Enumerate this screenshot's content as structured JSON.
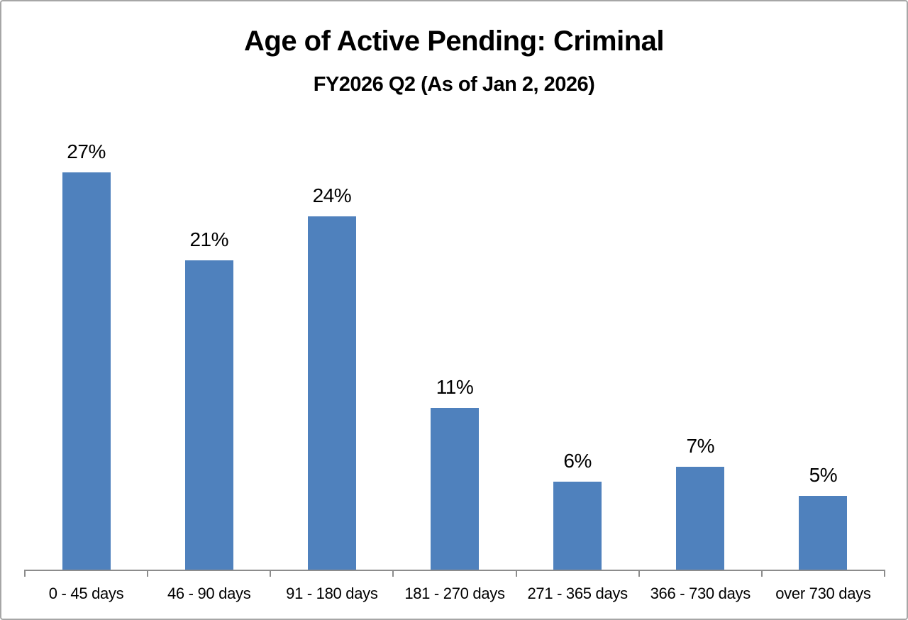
{
  "chart": {
    "title": "Age of Active Pending: Criminal",
    "subtitle": "FY2026 Q2 (As of Jan 2, 2026)"
  },
  "chart_data": {
    "type": "bar",
    "title": "Age of Active Pending: Criminal",
    "subtitle": "FY2026 Q2 (As of Jan 2, 2026)",
    "categories": [
      "0 - 45 days",
      "46 - 90 days",
      "91 - 180 days",
      "181 - 270 days",
      "271 - 365 days",
      "366 - 730 days",
      "over 730 days"
    ],
    "values": [
      27,
      21,
      24,
      11,
      6,
      7,
      5
    ],
    "data_labels": [
      "27%",
      "21%",
      "24%",
      "11%",
      "6%",
      "7%",
      "5%"
    ],
    "xlabel": "",
    "ylabel": "",
    "grid": false,
    "legend": false,
    "bar_color": "#4f81bd",
    "axis_color": "#8c8c8c",
    "label_color": "#000000"
  }
}
